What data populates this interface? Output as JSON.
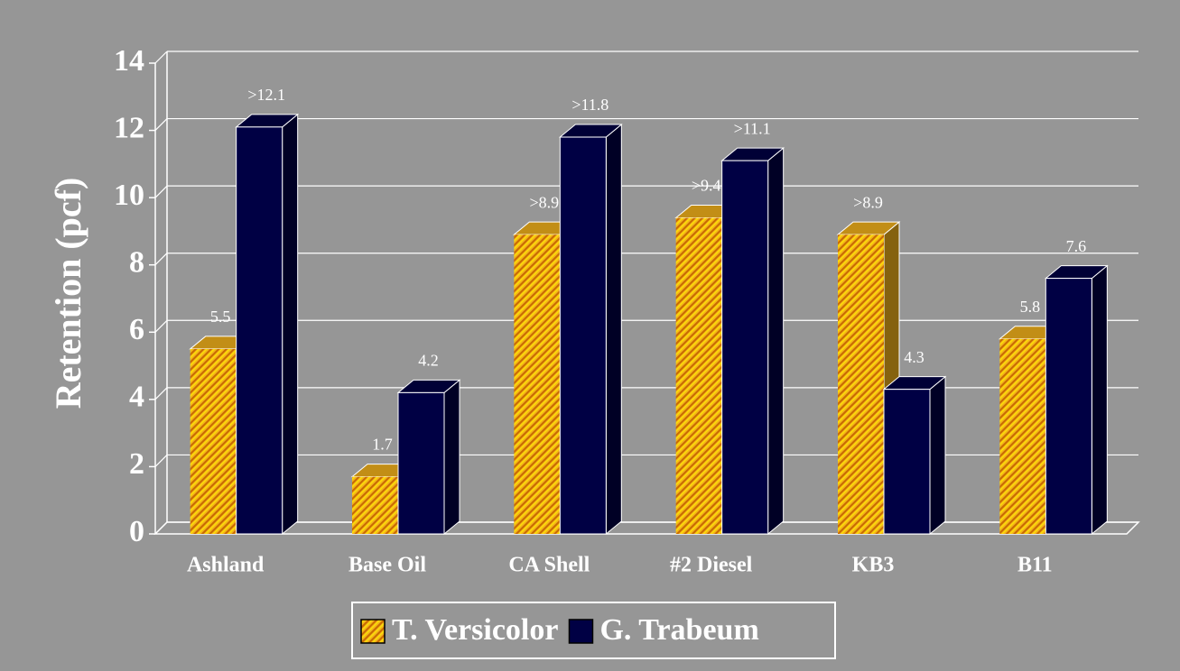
{
  "chart_data": {
    "type": "bar3d",
    "y_label": "Retention (pcf)",
    "categories": [
      "Ashland",
      "Base Oil",
      "CA Shell",
      "#2 Diesel",
      "KB3",
      "B11"
    ],
    "series": [
      {
        "name": "T. Versicolor",
        "color": "#f2b21c",
        "hatch": true,
        "values": [
          5.5,
          1.7,
          8.9,
          9.4,
          8.9,
          5.8
        ],
        "value_labels": [
          "5.5",
          "1.7",
          ">8.9",
          ">9.4",
          ">8.9",
          "5.8"
        ]
      },
      {
        "name": "G. Trabeum",
        "color": "#000044",
        "values": [
          12.1,
          4.2,
          11.8,
          11.1,
          4.3,
          7.6
        ],
        "value_labels": [
          ">12.1",
          "4.2",
          ">11.8",
          ">11.1",
          "4.3",
          "7.6"
        ]
      }
    ],
    "ylim": [
      0,
      14
    ],
    "yticks": [
      0,
      2,
      4,
      6,
      8,
      10,
      12,
      14
    ],
    "grid": true
  }
}
